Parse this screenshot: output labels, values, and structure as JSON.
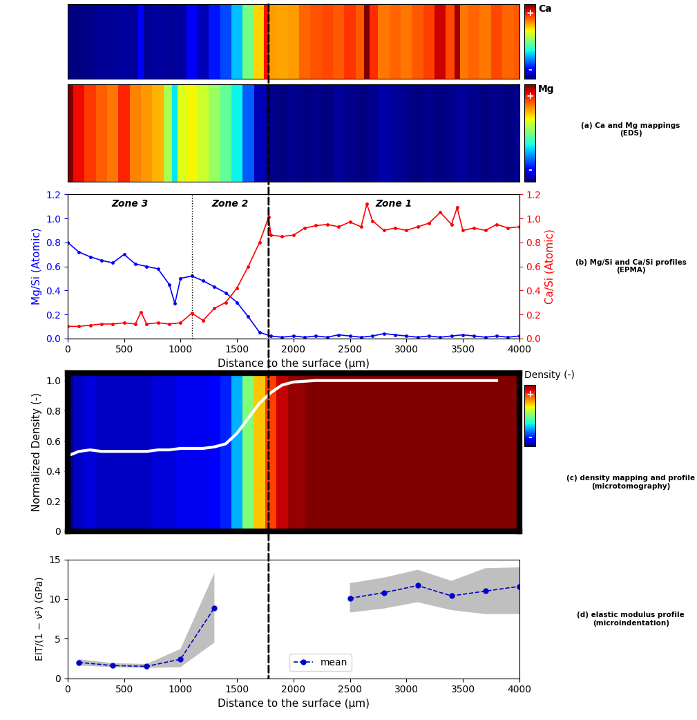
{
  "chart_data": [
    {
      "type": "heatmap",
      "title": "Ca",
      "colorbar_tick_labels": [
        "-",
        "+"
      ],
      "xlim": [
        0,
        4000
      ],
      "tick_labels": false,
      "annotations": [
        "(a) Ca and Mg mappings\n(EDS)"
      ]
    },
    {
      "type": "heatmap",
      "title": "Mg",
      "colorbar_tick_labels": [
        "-",
        "+"
      ],
      "xlim": [
        0,
        4000
      ],
      "tick_labels": false
    },
    {
      "type": "line",
      "xlabel": "Distance to the surface (μm)",
      "ylabel": "Mg/Si (Atomic)",
      "y2label": "Ca/Si (Atomic)",
      "annotations": [
        "(b) Mg/Si and Ca/Si profiles\n(EPMA)"
      ],
      "zone_labels": [
        "Zone 3",
        "Zone 2",
        "Zone 1"
      ],
      "zone_boundaries": [
        1100,
        1780
      ],
      "xlim": [
        0,
        4000
      ],
      "xticks": [
        0,
        500,
        1000,
        1500,
        2000,
        2500,
        3000,
        3500,
        4000
      ],
      "ylim": [
        0.0,
        1.2
      ],
      "yticks": [
        0.0,
        0.2,
        0.4,
        0.6,
        0.8,
        1.0,
        1.2
      ],
      "y2lim": [
        0.0,
        1.2
      ],
      "y2ticks": [
        0.0,
        0.2,
        0.4,
        0.6,
        0.8,
        1.0,
        1.2
      ],
      "series": [
        {
          "color": "blue",
          "marker": "o",
          "x": [
            0,
            100,
            200,
            300,
            400,
            500,
            600,
            700,
            800,
            900,
            950,
            1000,
            1100,
            1200,
            1300,
            1400,
            1500,
            1600,
            1700,
            1800,
            1900,
            2000,
            2100,
            2200,
            2300,
            2400,
            2500,
            2600,
            2700,
            2800,
            2900,
            3000,
            3100,
            3200,
            3300,
            3400,
            3500,
            3600,
            3700,
            3800,
            3900,
            4000
          ],
          "values": [
            0.8,
            0.72,
            0.68,
            0.65,
            0.63,
            0.7,
            0.62,
            0.6,
            0.58,
            0.45,
            0.29,
            0.5,
            0.52,
            0.48,
            0.43,
            0.38,
            0.3,
            0.18,
            0.05,
            0.02,
            0.01,
            0.02,
            0.01,
            0.02,
            0.01,
            0.03,
            0.02,
            0.01,
            0.02,
            0.04,
            0.03,
            0.02,
            0.01,
            0.02,
            0.01,
            0.02,
            0.03,
            0.02,
            0.01,
            0.02,
            0.01,
            0.02
          ]
        },
        {
          "color": "red",
          "marker": "o",
          "axis": "y2",
          "x": [
            0,
            100,
            200,
            300,
            400,
            500,
            600,
            650,
            700,
            800,
            900,
            1000,
            1100,
            1200,
            1300,
            1400,
            1500,
            1600,
            1700,
            1780,
            1800,
            1900,
            2000,
            2100,
            2200,
            2300,
            2400,
            2500,
            2600,
            2650,
            2700,
            2800,
            2900,
            3000,
            3100,
            3200,
            3300,
            3400,
            3450,
            3500,
            3600,
            3700,
            3800,
            3900,
            4000
          ],
          "values": [
            0.1,
            0.1,
            0.11,
            0.12,
            0.12,
            0.13,
            0.12,
            0.22,
            0.12,
            0.13,
            0.12,
            0.13,
            0.21,
            0.15,
            0.25,
            0.3,
            0.42,
            0.6,
            0.8,
            1.01,
            0.86,
            0.85,
            0.86,
            0.92,
            0.94,
            0.95,
            0.93,
            0.97,
            0.93,
            1.12,
            0.98,
            0.9,
            0.92,
            0.9,
            0.93,
            0.96,
            1.05,
            0.95,
            1.09,
            0.9,
            0.92,
            0.9,
            0.95,
            0.92,
            0.93
          ]
        }
      ]
    },
    {
      "type": "line",
      "ylabel": "Normalized Density (-)",
      "annotations": [
        "(c) density mapping and profile\n(microtomography)"
      ],
      "colorbar_title": "Density (-)",
      "colorbar_tick_labels": [
        "-",
        "+"
      ],
      "color": "white",
      "tick_labels": "y",
      "xlim": [
        0,
        4000
      ],
      "ylim": [
        0,
        1.05
      ],
      "yticks": [
        0,
        0.2,
        0.4,
        0.6,
        0.8,
        1.0
      ],
      "x": [
        0,
        100,
        200,
        300,
        400,
        500,
        600,
        700,
        800,
        900,
        1000,
        1100,
        1200,
        1300,
        1400,
        1500,
        1600,
        1700,
        1800,
        1900,
        2000,
        2200,
        2400,
        2600,
        2800,
        3000,
        3200,
        3400,
        3600,
        3800
      ],
      "values": [
        0.5,
        0.53,
        0.54,
        0.53,
        0.53,
        0.53,
        0.53,
        0.53,
        0.54,
        0.54,
        0.55,
        0.55,
        0.55,
        0.56,
        0.58,
        0.65,
        0.75,
        0.85,
        0.92,
        0.97,
        0.99,
        1.0,
        1.0,
        1.0,
        1.0,
        1.0,
        1.0,
        1.0,
        1.0,
        1.0
      ]
    },
    {
      "type": "line",
      "xlabel": "Distance to the surface (μm)",
      "ylabel": "EIT/(1 − ν²) (GPa)",
      "annotations": [
        "(d) elastic modulus profile\n(microindentation)"
      ],
      "legend": "lower center",
      "xlim": [
        0,
        4000
      ],
      "xticks": [
        0,
        500,
        1000,
        1500,
        2000,
        2500,
        3000,
        3500,
        4000
      ],
      "ylim": [
        0,
        15
      ],
      "yticks": [
        0,
        5,
        10,
        15
      ],
      "series": [
        {
          "name": "mean",
          "color": "mediumblue",
          "marker": "o",
          "line_style": "dashed",
          "x": [
            100,
            400,
            700,
            1000,
            1300,
            1900,
            2500,
            2800,
            3100,
            3400,
            3700,
            4000
          ],
          "values": [
            2.0,
            1.6,
            1.5,
            2.4,
            8.9,
            null,
            10.1,
            10.8,
            11.7,
            10.4,
            11.0,
            11.6
          ],
          "lower": [
            1.6,
            1.4,
            1.3,
            1.4,
            4.5,
            null,
            8.3,
            8.8,
            9.6,
            8.6,
            8.1,
            8.1
          ],
          "upper": [
            2.4,
            1.9,
            1.8,
            3.7,
            13.3,
            null,
            12.0,
            12.7,
            13.7,
            12.3,
            13.9,
            14.0
          ]
        }
      ]
    }
  ]
}
